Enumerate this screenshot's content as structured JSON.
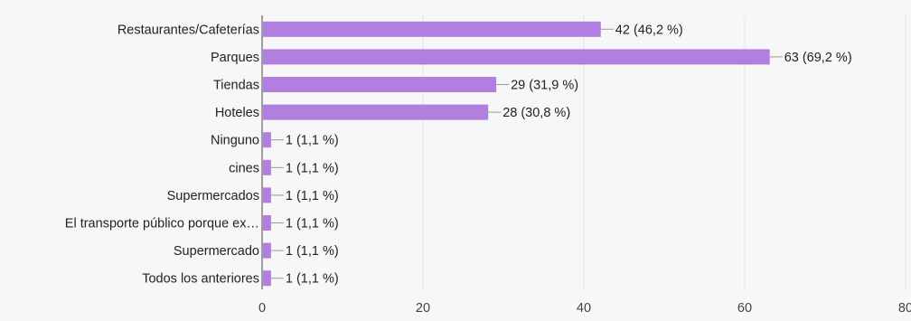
{
  "chart_data": {
    "type": "bar",
    "orientation": "horizontal",
    "categories": [
      "Restaurantes/Cafeterías",
      "Parques",
      "Tiendas",
      "Hoteles",
      "Ninguno",
      "cines",
      "Supermercados",
      "El transporte público porque ex…",
      "Supermercado",
      "Todos los anteriores"
    ],
    "values": [
      42,
      63,
      29,
      28,
      1,
      1,
      1,
      1,
      1,
      1
    ],
    "value_labels": [
      "42 (46,2 %)",
      "63 (69,2 %)",
      "29 (31,9 %)",
      "28 (30,8 %)",
      "1 (1,1 %)",
      "1 (1,1 %)",
      "1 (1,1 %)",
      "1 (1,1 %)",
      "1 (1,1 %)",
      "1 (1,1 %)"
    ],
    "xlim": [
      0,
      80
    ],
    "x_ticks": [
      0,
      20,
      40,
      60,
      80
    ],
    "x_tick_labels": [
      "0",
      "20",
      "40",
      "60",
      "80"
    ],
    "grid": true,
    "bar_color": "#b07fe0",
    "title": "",
    "xlabel": "",
    "ylabel": ""
  }
}
